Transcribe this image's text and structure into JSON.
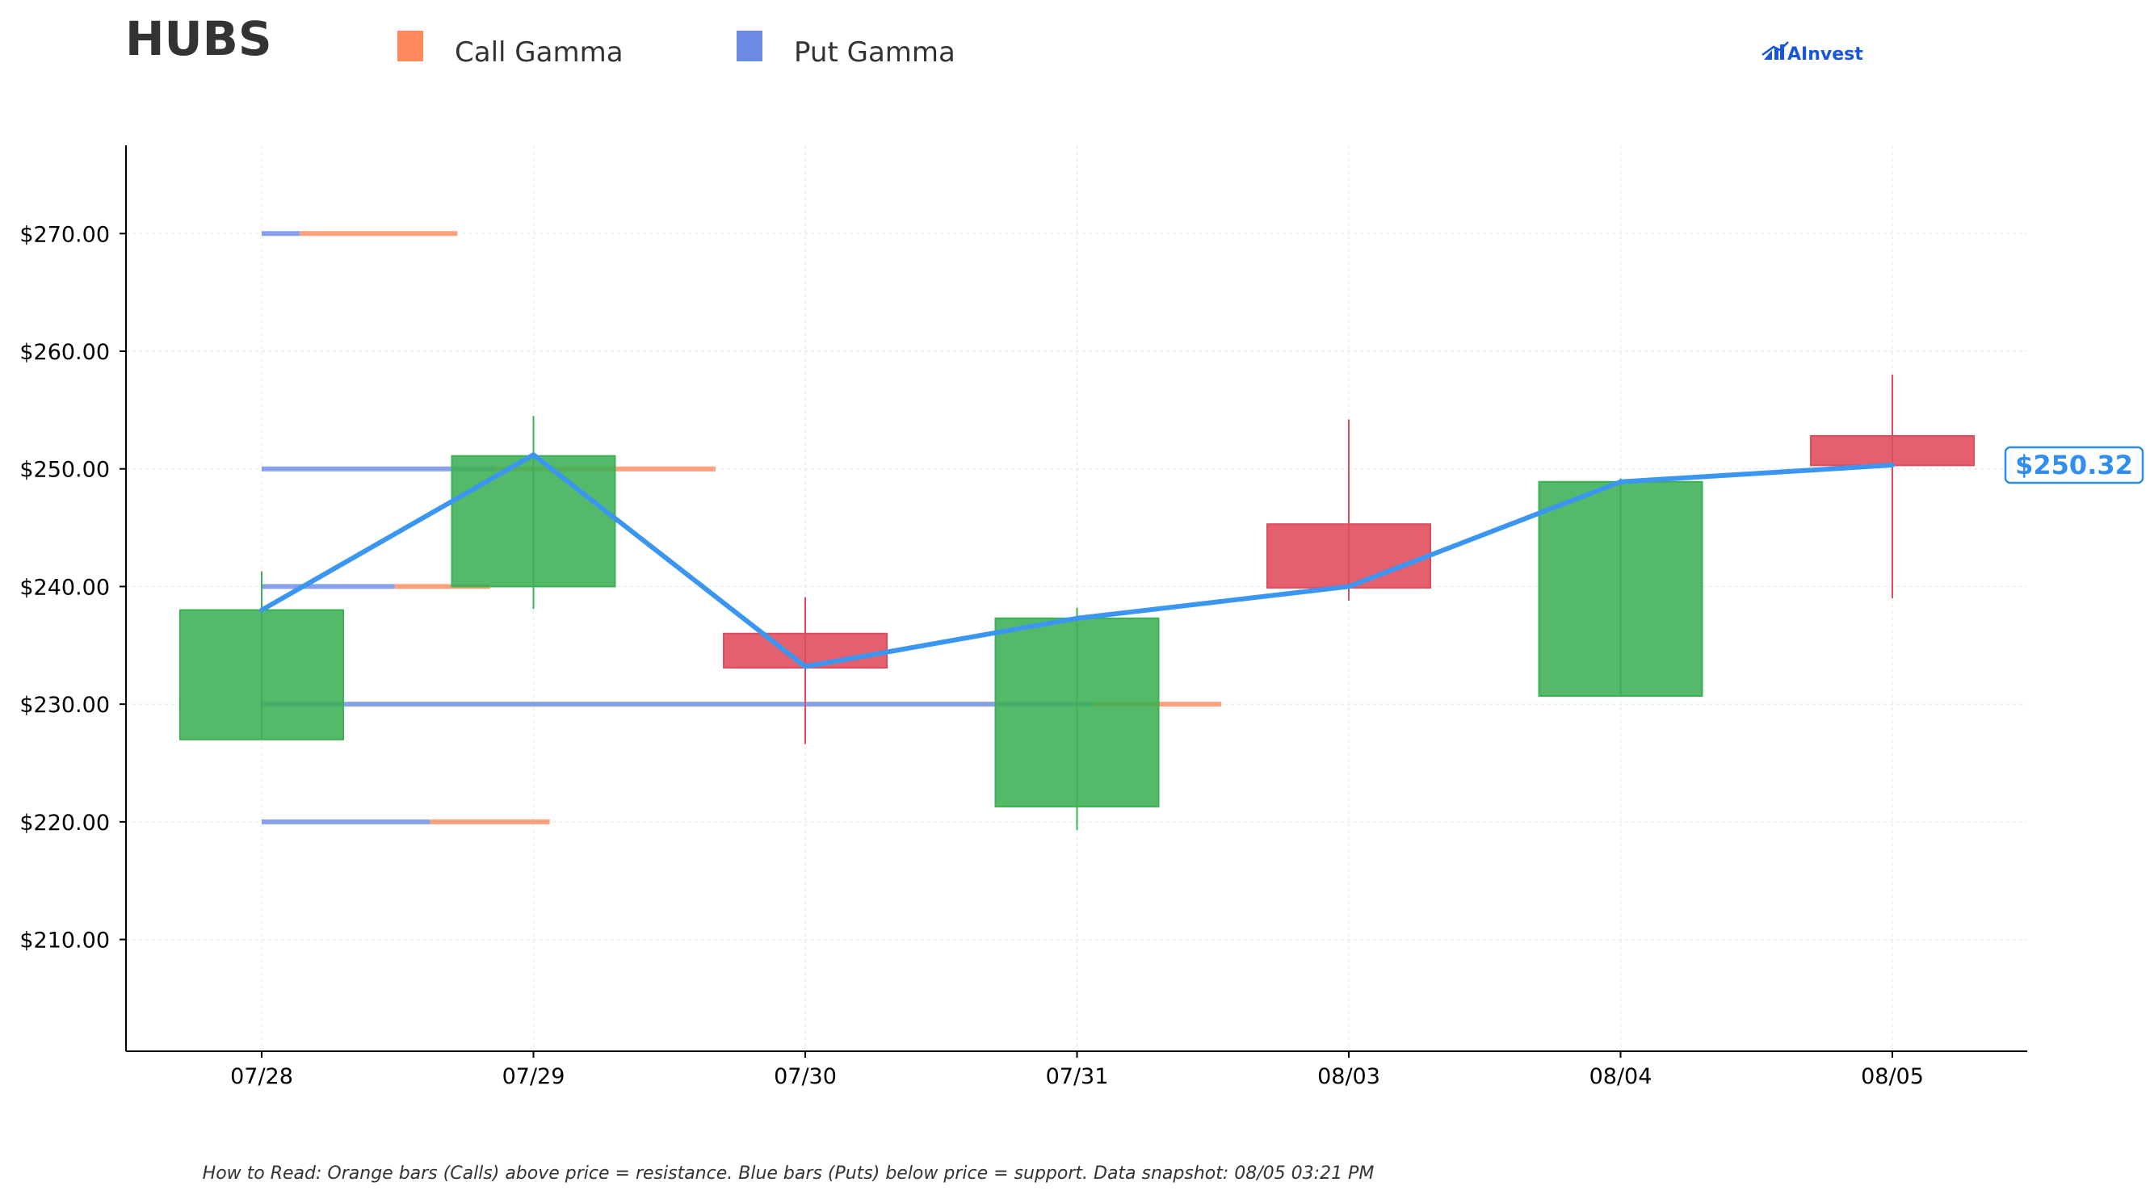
{
  "header": {
    "ticker": "HUBS",
    "legend": [
      {
        "label": "Call Gamma",
        "color": "#ff8a5b"
      },
      {
        "label": "Put Gamma",
        "color": "#6a8ae6"
      }
    ],
    "brand": "AInvest"
  },
  "footnote": "How to Read: Orange bars (Calls) above price = resistance. Blue bars (Puts) below price = support. Data snapshot: 08/05 03:21 PM",
  "colors": {
    "up": "#3cb054",
    "down": "#e04a5a",
    "price_line": "#3a96f0",
    "call": "#ff8a5b",
    "put": "#6a8ae6",
    "grid": "#e8e8e8"
  },
  "chart_data": {
    "type": "candlestick",
    "categories": [
      "07/28",
      "07/29",
      "07/30",
      "07/31",
      "08/03",
      "08/04",
      "08/05"
    ],
    "ylim": [
      200.5,
      277.5
    ],
    "yticks": [
      210,
      220,
      230,
      240,
      250,
      260,
      270
    ],
    "ytick_labels": [
      "$210.00",
      "$220.00",
      "$230.00",
      "$240.00",
      "$250.00",
      "$260.00",
      "$270.00"
    ],
    "candles": [
      {
        "date": "07/28",
        "open": 227.0,
        "close": 238.0,
        "high": 241.3,
        "low": 227.0
      },
      {
        "date": "07/29",
        "open": 240.0,
        "close": 251.1,
        "high": 254.5,
        "low": 238.1
      },
      {
        "date": "07/30",
        "open": 236.0,
        "close": 233.1,
        "high": 239.1,
        "low": 226.6
      },
      {
        "date": "07/31",
        "open": 221.3,
        "close": 237.3,
        "high": 238.2,
        "low": 219.3
      },
      {
        "date": "08/03",
        "open": 245.3,
        "close": 239.9,
        "high": 254.2,
        "low": 238.8
      },
      {
        "date": "08/04",
        "open": 230.7,
        "close": 248.9,
        "high": 249.2,
        "low": 230.7
      },
      {
        "date": "08/05",
        "open": 252.8,
        "close": 250.3,
        "high": 258.0,
        "low": 239.0
      }
    ],
    "price_line": [
      238.0,
      251.2,
      233.2,
      237.3,
      240.0,
      248.9,
      250.32
    ],
    "last_price_label": "$250.32",
    "gamma_levels": [
      {
        "strike": 270,
        "put": 0.14,
        "call": 0.58
      },
      {
        "strike": 250,
        "put": 0.86,
        "call": 0.81
      },
      {
        "strike": 240,
        "put": 0.49,
        "call": 0.35
      },
      {
        "strike": 230,
        "put": 3.06,
        "call": 0.47
      },
      {
        "strike": 220,
        "put": 0.62,
        "call": 0.44
      }
    ],
    "gamma_units_per_category": 1,
    "grid": true,
    "legend_position": "top"
  }
}
